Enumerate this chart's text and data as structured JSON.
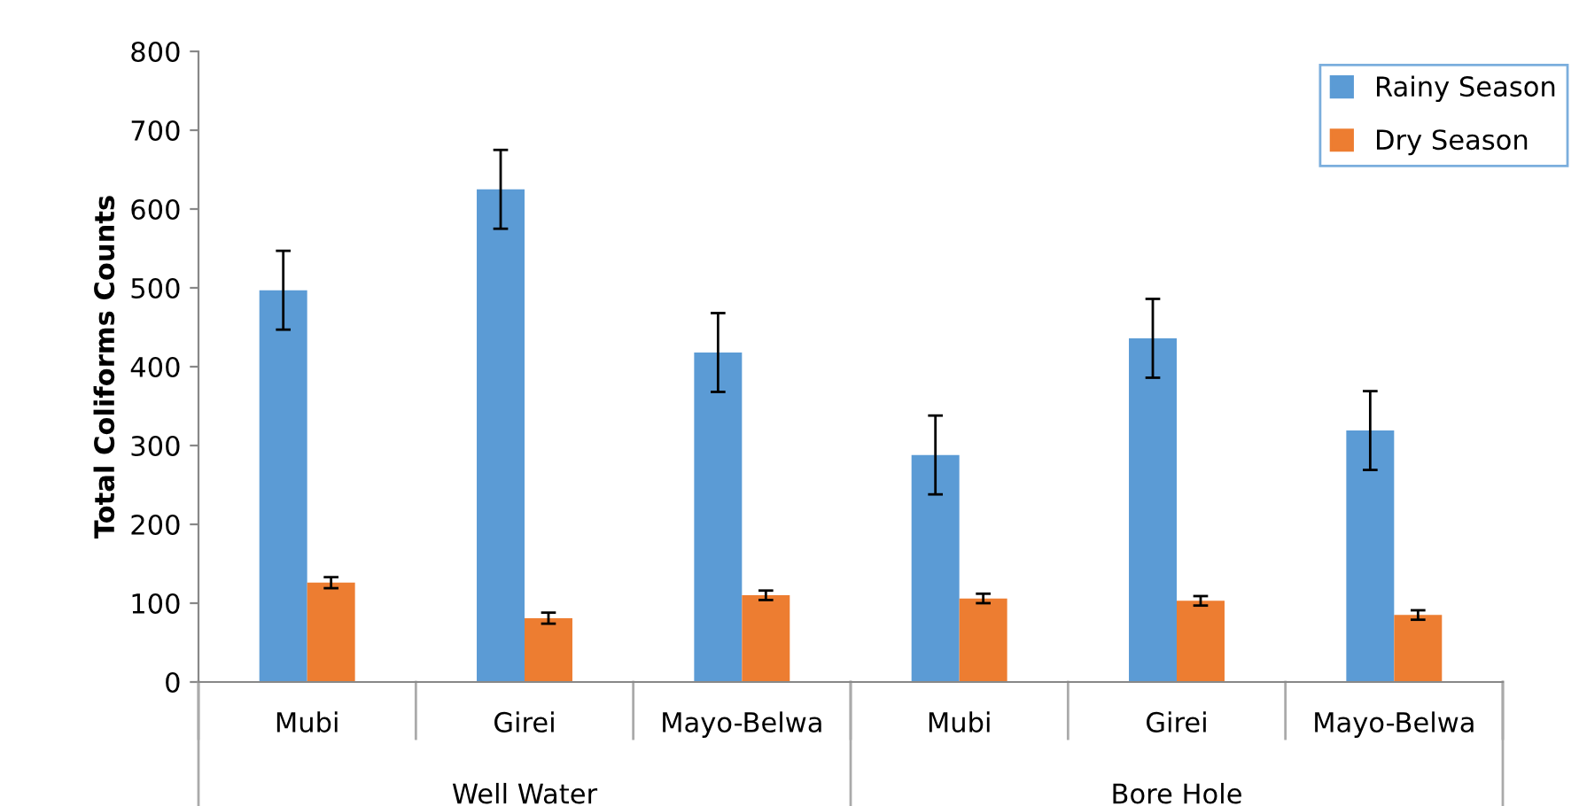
{
  "chart_data": {
    "type": "bar",
    "ylabel": "Total Coliforms Counts",
    "categories": [
      "Mubi",
      "Girei",
      "Mayo-Belwa",
      "Mubi",
      "Girei",
      "Mayo-Belwa"
    ],
    "series": [
      {
        "name": "Rainy Season",
        "color": "#5b9bd5",
        "values": [
          497,
          625,
          418,
          288,
          436,
          319
        ],
        "errors": [
          50,
          50,
          50,
          50,
          50,
          50
        ]
      },
      {
        "name": "Dry Season",
        "color": "#ed7d31",
        "values": [
          126,
          81,
          110,
          106,
          103,
          85
        ],
        "errors": [
          7,
          7,
          6,
          6,
          6,
          6
        ]
      }
    ],
    "annotations": [
      "Well Water",
      "Bore Hole"
    ],
    "ylim": [
      0,
      800
    ],
    "yticks": [
      0,
      100,
      200,
      300,
      400,
      500,
      600,
      700,
      800
    ],
    "grid": false,
    "legend": "top right"
  }
}
